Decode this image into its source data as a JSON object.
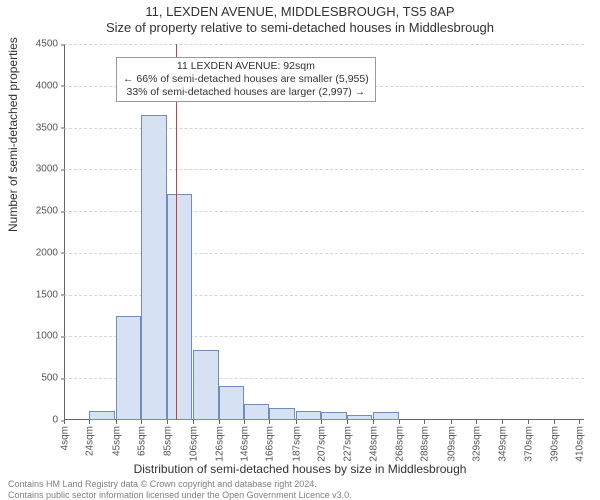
{
  "titles": {
    "line1": "11, LEXDEN AVENUE, MIDDLESBROUGH, TS5 8AP",
    "line2": "Size of property relative to semi-detached houses in Middlesbrough"
  },
  "chart": {
    "type": "histogram",
    "ylim": [
      0,
      4500
    ],
    "ytick_step": 500,
    "yticks": [
      0,
      500,
      1000,
      1500,
      2000,
      2500,
      3000,
      3500,
      4000,
      4500
    ],
    "ylabel": "Number of semi-detached properties",
    "xlabel": "Distribution of semi-detached houses by size in Middlesbrough",
    "x_min": 4,
    "x_max": 414,
    "x_tick_labels": [
      "4sqm",
      "24sqm",
      "45sqm",
      "65sqm",
      "85sqm",
      "106sqm",
      "126sqm",
      "146sqm",
      "166sqm",
      "187sqm",
      "207sqm",
      "227sqm",
      "248sqm",
      "268sqm",
      "288sqm",
      "309sqm",
      "329sqm",
      "349sqm",
      "370sqm",
      "390sqm",
      "410sqm"
    ],
    "x_tick_positions": [
      4,
      24,
      45,
      65,
      85,
      106,
      126,
      146,
      166,
      187,
      207,
      227,
      248,
      268,
      288,
      309,
      329,
      349,
      370,
      390,
      410
    ],
    "bar_width_sqm": 20,
    "bar_lefts": [
      4,
      24,
      45,
      65,
      85,
      106,
      126,
      146,
      166,
      187,
      207,
      227,
      248,
      268,
      288,
      309,
      329,
      349,
      370,
      390
    ],
    "bar_values": [
      0,
      110,
      1250,
      3650,
      2700,
      840,
      410,
      190,
      140,
      110,
      90,
      60,
      90,
      0,
      0,
      0,
      0,
      0,
      0,
      0
    ],
    "bar_fill": "#d6e2f3",
    "bar_stroke": "#6f8fb8",
    "grid_color": "#d6d6d6",
    "axis_color": "#666666",
    "background_color": "#ffffff",
    "ref_line": {
      "x": 92,
      "color": "#d23b3b"
    },
    "annotation": {
      "lines": [
        "11 LEXDEN AVENUE: 92sqm",
        "← 66% of semi-detached houses are smaller (5,955)",
        "33% of semi-detached houses are larger (2,997) →"
      ],
      "border_color": "#9a9a9a",
      "bg": "#ffffff"
    }
  },
  "footer": {
    "line1": "Contains HM Land Registry data © Crown copyright and database right 2024.",
    "line2": "Contains public sector information licensed under the Open Government Licence v3.0."
  }
}
